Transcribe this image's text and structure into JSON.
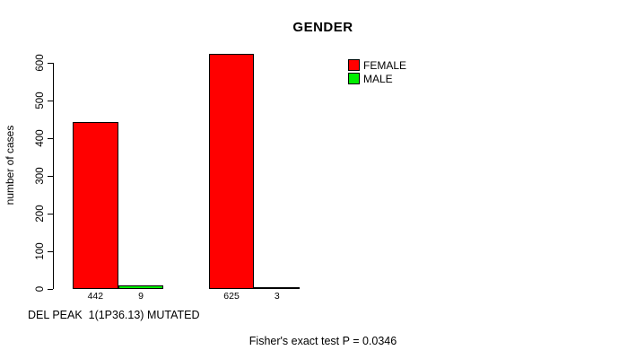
{
  "chart_data": {
    "type": "bar",
    "title": "GENDER",
    "ylabel": "number of cases",
    "xlabel": "DEL PEAK  1(1P36.13) MUTATED",
    "annotation": "Fisher's exact test P = 0.0346",
    "ylim": [
      0,
      600
    ],
    "yticks": [
      0,
      100,
      200,
      300,
      400,
      500,
      600
    ],
    "grid": false,
    "legend_position": "top-right",
    "bar_value_labels": [
      "442",
      "9",
      "625",
      "3"
    ],
    "categories": [
      "group-1",
      "group-2"
    ],
    "series": [
      {
        "name": "FEMALE",
        "color": "#ff0000",
        "values": [
          442,
          625
        ]
      },
      {
        "name": "MALE",
        "color": "#00ee00",
        "values": [
          9,
          3
        ]
      }
    ]
  }
}
